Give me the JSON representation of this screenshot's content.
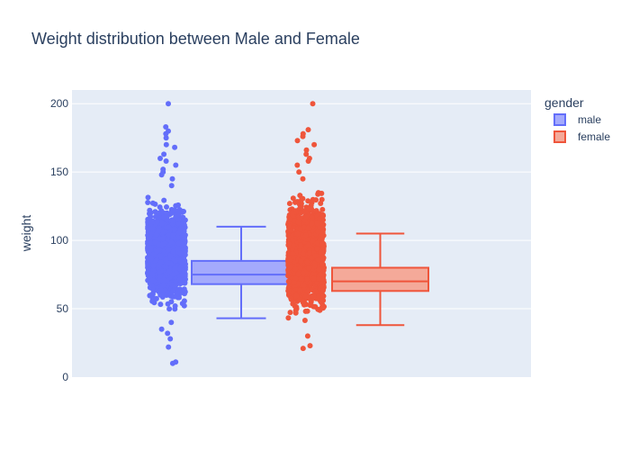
{
  "chart_data": {
    "type": "box",
    "title": "Weight distribution between Male and Female",
    "xlabel": "",
    "ylabel": "weight",
    "ylim": [
      0,
      210
    ],
    "yticks": [
      0,
      50,
      100,
      150,
      200
    ],
    "grid": true,
    "legend": {
      "title": "gender",
      "placement": "top-right"
    },
    "series": [
      {
        "name": "male",
        "color": "#636efa",
        "fill": "#a4aafc",
        "box": {
          "min": 43,
          "q1": 68,
          "median": 75,
          "q3": 85,
          "max": 110
        },
        "points_core_range": [
          45,
          135
        ],
        "outliers": [
          10,
          11,
          22,
          28,
          32,
          35,
          40,
          140,
          145,
          148,
          150,
          152,
          155,
          158,
          160,
          163,
          168,
          170,
          175,
          178,
          180,
          183,
          200
        ]
      },
      {
        "name": "female",
        "color": "#ef553b",
        "fill": "#f4a999",
        "box": {
          "min": 38,
          "q1": 63,
          "median": 70,
          "q3": 80,
          "max": 105
        },
        "points_core_range": [
          38,
          140
        ],
        "outliers": [
          21,
          23,
          30,
          145,
          150,
          155,
          158,
          160,
          163,
          166,
          170,
          173,
          176,
          178,
          181,
          200
        ]
      }
    ]
  }
}
